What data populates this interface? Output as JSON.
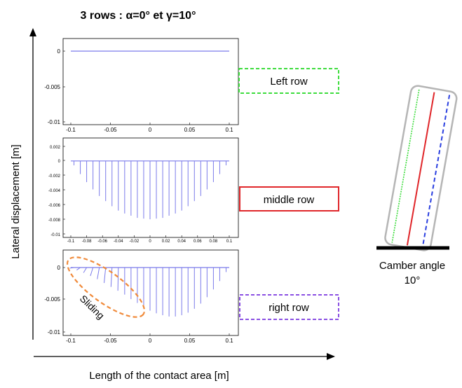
{
  "figure": {
    "title": "3 rows : α=0° et γ=10°",
    "ylabel": "Lateral displacement [m]",
    "xlabel": "Length of the contact area [m]"
  },
  "row_labels": {
    "left": "Left row",
    "middle": "middle row",
    "right": "right row"
  },
  "annotation": {
    "sliding": "Sliding"
  },
  "tyre": {
    "caption_line1": "Camber angle",
    "caption_line2": "10°"
  },
  "colors": {
    "series": "#7b7bea",
    "left_row_box": "#3ddc3d",
    "middle_row_box": "#e0262a",
    "right_row_box": "#8a4fe3",
    "sliding_ellipse": "#f08a3a"
  },
  "chart_data": [
    {
      "type": "line",
      "panel": "Left row",
      "x_ticks": [
        "-0.1",
        "-0.05",
        "0",
        "0.05",
        "0.1"
      ],
      "y_ticks": [
        "0",
        "-0.005",
        "-0.01"
      ],
      "xlim": [
        -0.1,
        0.1
      ],
      "ylim": [
        -0.01,
        0.001
      ],
      "series": [
        {
          "x": [
            -0.1,
            0.1
          ],
          "values": [
            0,
            0
          ]
        }
      ]
    },
    {
      "type": "bar",
      "panel": "middle row",
      "x_ticks": [
        "-0.1",
        "-0.08",
        "-0.06",
        "-0.04",
        "-0.02",
        "0",
        "0.02",
        "0.04",
        "0.06",
        "0.08",
        "0.1"
      ],
      "y_ticks": [
        "0.002",
        "0",
        "-0.002",
        "-0.004",
        "-0.006",
        "-0.008",
        "-0.01"
      ],
      "xlim": [
        -0.1,
        0.1
      ],
      "ylim": [
        -0.01,
        0.003
      ],
      "x": [
        -0.096,
        -0.088,
        -0.08,
        -0.072,
        -0.064,
        -0.056,
        -0.048,
        -0.04,
        -0.032,
        -0.024,
        -0.016,
        -0.008,
        0,
        0.008,
        0.016,
        0.024,
        0.032,
        0.04,
        0.048,
        0.056,
        0.064,
        0.072,
        0.08,
        0.088,
        0.096
      ],
      "values": [
        -0.0006,
        -0.0018,
        -0.0029,
        -0.0039,
        -0.0048,
        -0.0055,
        -0.0062,
        -0.0068,
        -0.0072,
        -0.0075,
        -0.0078,
        -0.0079,
        -0.008,
        -0.0079,
        -0.0078,
        -0.0075,
        -0.0072,
        -0.0068,
        -0.0062,
        -0.0055,
        -0.0048,
        -0.0039,
        -0.0029,
        -0.0018,
        -0.0006
      ]
    },
    {
      "type": "bar",
      "panel": "right row",
      "x_ticks": [
        "-0.1",
        "-0.05",
        "0",
        "0.05",
        "0.1"
      ],
      "y_ticks": [
        "0",
        "-0.005",
        "-0.01"
      ],
      "xlim": [
        -0.1,
        0.1
      ],
      "ylim": [
        -0.01,
        0.001
      ],
      "x": [
        -0.096,
        -0.088,
        -0.08,
        -0.072,
        -0.064,
        -0.056,
        -0.048,
        -0.04,
        -0.032,
        -0.024,
        -0.016,
        -0.008,
        0,
        0.008,
        0.016,
        0.024,
        0.032,
        0.04,
        0.048,
        0.056,
        0.064,
        0.072,
        0.08,
        0.088,
        0.096
      ],
      "values": [
        -0.0001,
        -0.0004,
        -0.0008,
        -0.0013,
        -0.0018,
        -0.0024,
        -0.003,
        -0.0036,
        -0.0042,
        -0.0049,
        -0.0055,
        -0.0061,
        -0.0067,
        -0.0071,
        -0.0074,
        -0.0076,
        -0.0076,
        -0.0074,
        -0.007,
        -0.0064,
        -0.0056,
        -0.0046,
        -0.0034,
        -0.0021,
        -0.0007
      ],
      "sliding_tips_x": [
        -0.096,
        -0.086,
        -0.076,
        -0.066,
        -0.056,
        -0.046,
        -0.036,
        -0.026
      ]
    }
  ]
}
